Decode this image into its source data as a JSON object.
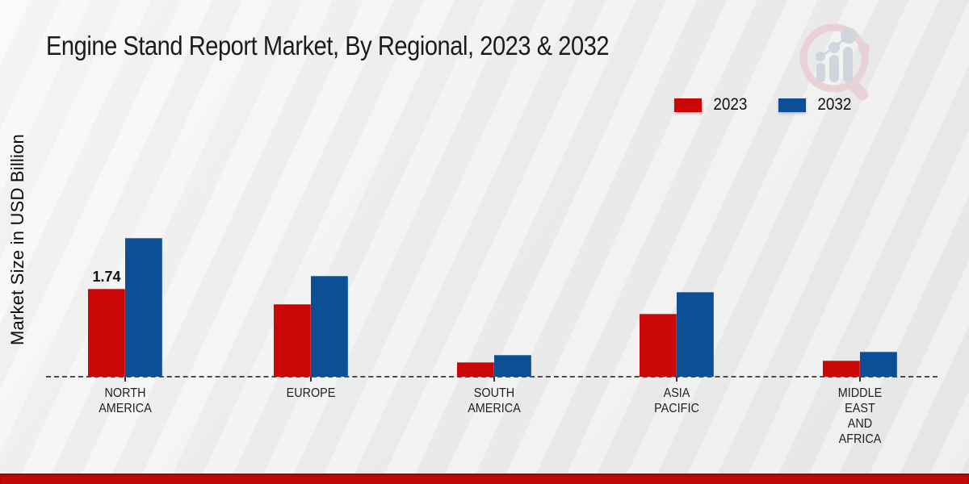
{
  "title": "Engine Stand Report Market, By Regional, 2023 & 2032",
  "y_axis_label": "Market Size in USD Billion",
  "legend": [
    {
      "label": "2023",
      "color": "#cb0606"
    },
    {
      "label": "2032",
      "color": "#0d4f94"
    }
  ],
  "colors": {
    "series_2023": "#cb0606",
    "series_2032": "#0d4f94",
    "footer_bar": "#c20909",
    "axis_line": "#4c4c4c",
    "background": "#eeeeee"
  },
  "watermark": {
    "icon": "magnifier-bar-chart-logo"
  },
  "chart_data": {
    "type": "bar",
    "title": "Engine Stand Report Market, By Regional, 2023 & 2032",
    "xlabel": "",
    "ylabel": "Market Size in USD Billion",
    "ylim": [
      0,
      3
    ],
    "grid": false,
    "legend_position": "top-right",
    "baseline_style": "dashed",
    "categories": [
      "North America",
      "Europe",
      "South America",
      "Asia Pacific",
      "Middle East and Africa"
    ],
    "category_label_lines": [
      [
        "NORTH",
        "AMERICA"
      ],
      [
        "EUROPE"
      ],
      [
        "SOUTH",
        "AMERICA"
      ],
      [
        "ASIA",
        "PACIFIC"
      ],
      [
        "MIDDLE",
        "EAST",
        "AND",
        "AFRICA"
      ]
    ],
    "series": [
      {
        "name": "2023",
        "color": "#cb0606",
        "values": [
          1.74,
          1.44,
          0.28,
          1.24,
          0.32
        ]
      },
      {
        "name": "2032",
        "color": "#0d4f94",
        "values": [
          2.75,
          2.0,
          0.43,
          1.68,
          0.5
        ]
      }
    ],
    "data_labels": [
      {
        "series_index": 0,
        "category_index": 0,
        "text": "1.74"
      }
    ]
  }
}
